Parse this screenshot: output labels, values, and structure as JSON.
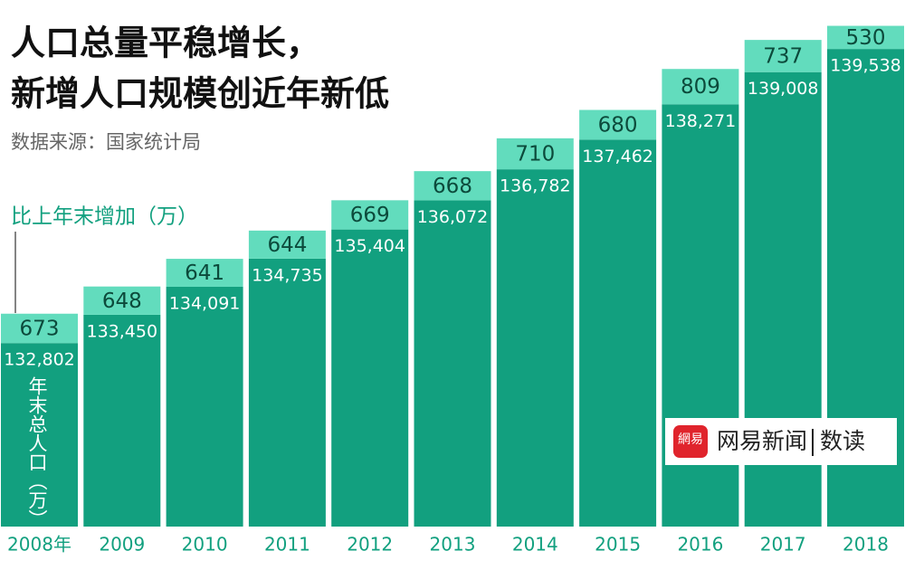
{
  "chart_data": {
    "type": "bar",
    "title_lines": [
      "人口总量平稳增长，",
      "新增人口规模创近年新低"
    ],
    "source": "数据来源：国家统计局",
    "categories": [
      "2008年",
      "2009",
      "2010",
      "2011",
      "2012",
      "2013",
      "2014",
      "2015",
      "2016",
      "2017",
      "2018"
    ],
    "series": [
      {
        "name": "年末总人口（万）",
        "color": "#12a07f",
        "values": [
          132802,
          133450,
          134091,
          134735,
          135404,
          136072,
          136782,
          137462,
          138271,
          139008,
          139538
        ],
        "value_labels": [
          "132,802",
          "133,450",
          "134,091",
          "134,735",
          "135,404",
          "136,072",
          "136,782",
          "137,462",
          "138,271",
          "139,008",
          "139,538"
        ]
      },
      {
        "name": "比上年末增加（万）",
        "color": "#62dcbd",
        "values": [
          673,
          648,
          641,
          644,
          669,
          668,
          710,
          680,
          809,
          737,
          530
        ]
      }
    ],
    "ylim": [
      128600,
      140100
    ],
    "logo": {
      "icon": "網易",
      "text": "网易新闻",
      "sub": "数读"
    }
  }
}
